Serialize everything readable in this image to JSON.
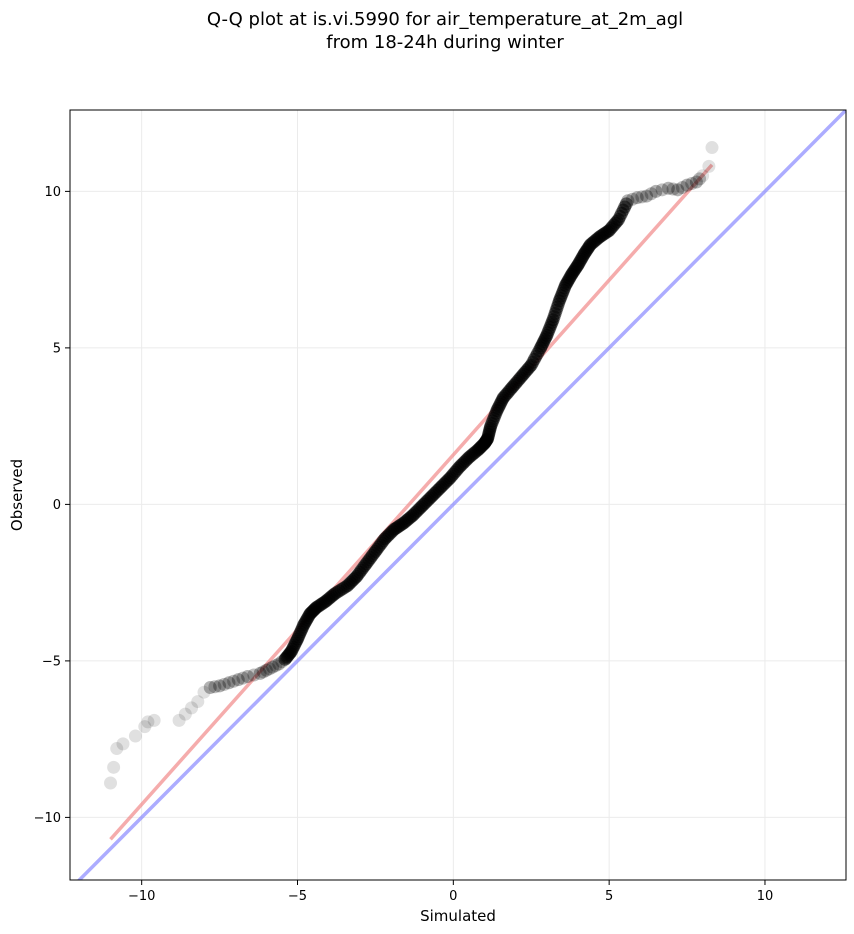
{
  "title_line1": "Q-Q plot at is.vi.5990 for air_temperature_at_2m_agl",
  "title_line2": "from 18-24h during winter",
  "chart_data": {
    "type": "scatter",
    "title": "Q-Q plot at is.vi.5990 for air_temperature_at_2m_agl\nfrom 18-24h during winter",
    "xlabel": "Simulated",
    "ylabel": "Observed",
    "xlim": [
      -12.3,
      12.6
    ],
    "ylim": [
      -12.0,
      12.6
    ],
    "grid": true,
    "xticks": [
      -10,
      -5,
      0,
      5,
      10
    ],
    "yticks": [
      -10,
      -5,
      0,
      5,
      10
    ],
    "xtick_labels": [
      "−10",
      "−5",
      "0",
      "5",
      "10"
    ],
    "ytick_labels": [
      "−10",
      "−5",
      "0",
      "5",
      "10"
    ],
    "colors": {
      "points": "#000000",
      "fit_line": "#f08080",
      "identity_line": "#8080ff"
    },
    "fit_line": {
      "x": [
        -11.0,
        8.3
      ],
      "y": [
        -10.7,
        10.85
      ]
    },
    "identity_line": {
      "x": [
        -12.3,
        12.6
      ],
      "y": [
        -12.3,
        12.6
      ]
    },
    "quantiles": {
      "x": [
        -11.0,
        -10.9,
        -10.8,
        -10.6,
        -10.2,
        -9.9,
        -9.8,
        -9.6,
        -8.8,
        -8.6,
        -8.4,
        -8.2,
        -8.0,
        -7.8,
        -7.5,
        -7.2,
        -6.9,
        -6.6,
        -6.2,
        -6.0,
        -5.8,
        -5.6,
        -5.4,
        -5.2,
        -5.0,
        -4.8,
        -4.6,
        -4.4,
        -4.1,
        -3.8,
        -3.4,
        -3.1,
        -2.8,
        -2.5,
        -2.2,
        -1.9,
        -1.6,
        -1.3,
        -1.0,
        -0.7,
        -0.4,
        -0.1,
        0.2,
        0.5,
        0.8,
        1.0,
        1.1,
        1.2,
        1.4,
        1.6,
        1.9,
        2.2,
        2.5,
        2.8,
        3.0,
        3.2,
        3.4,
        3.6,
        3.8,
        4.0,
        4.2,
        4.4,
        4.7,
        5.0,
        5.3,
        5.6,
        5.9,
        6.2,
        6.5,
        6.9,
        7.2,
        7.5,
        7.8,
        8.0,
        8.2,
        8.3
      ],
      "y": [
        -8.9,
        -8.4,
        -7.8,
        -7.65,
        -7.4,
        -7.1,
        -6.95,
        -6.9,
        -6.9,
        -6.7,
        -6.5,
        -6.3,
        -6.0,
        -5.85,
        -5.8,
        -5.7,
        -5.6,
        -5.5,
        -5.4,
        -5.3,
        -5.2,
        -5.1,
        -4.95,
        -4.7,
        -4.3,
        -3.85,
        -3.5,
        -3.3,
        -3.1,
        -2.85,
        -2.6,
        -2.3,
        -1.9,
        -1.5,
        -1.1,
        -0.8,
        -0.6,
        -0.35,
        -0.05,
        0.25,
        0.55,
        0.85,
        1.2,
        1.5,
        1.75,
        1.95,
        2.1,
        2.5,
        3.0,
        3.4,
        3.75,
        4.1,
        4.45,
        5.0,
        5.4,
        5.9,
        6.5,
        7.0,
        7.35,
        7.65,
        8.0,
        8.3,
        8.55,
        8.75,
        9.1,
        9.7,
        9.8,
        9.85,
        10.0,
        10.1,
        10.05,
        10.2,
        10.3,
        10.5,
        10.8,
        11.4
      ]
    }
  }
}
